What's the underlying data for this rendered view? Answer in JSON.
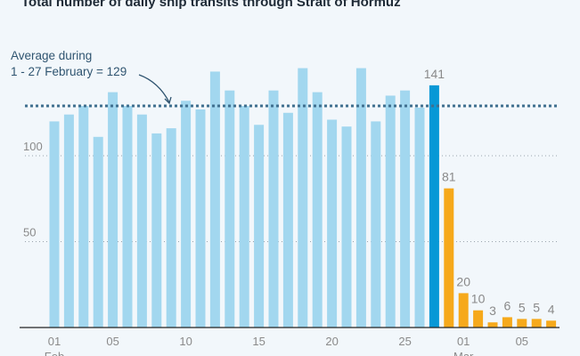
{
  "chart_data": {
    "type": "bar",
    "title": "Total number of daily ship transits through Strait of Hormuz",
    "xlabel": "",
    "ylabel": "",
    "ylim": [
      0,
      155
    ],
    "yticks": [
      50,
      100
    ],
    "grid": true,
    "categories": [
      "01 Feb",
      "02",
      "03",
      "04",
      "05",
      "06",
      "07",
      "08",
      "09",
      "10",
      "11",
      "12",
      "13",
      "14",
      "15",
      "16",
      "17",
      "18",
      "19",
      "20",
      "21",
      "22",
      "23",
      "24",
      "25",
      "26",
      "27",
      "28",
      "01 Mar",
      "02",
      "03",
      "04",
      "05",
      "06",
      "07"
    ],
    "values": [
      120,
      124,
      129,
      111,
      137,
      129,
      124,
      113,
      116,
      132,
      127,
      149,
      138,
      129,
      118,
      138,
      125,
      151,
      137,
      121,
      117,
      151,
      120,
      135,
      138,
      128,
      141,
      81,
      20,
      10,
      3,
      6,
      5,
      5,
      4
    ],
    "bar_types": [
      "pre",
      "pre",
      "pre",
      "pre",
      "pre",
      "pre",
      "pre",
      "pre",
      "pre",
      "pre",
      "pre",
      "pre",
      "pre",
      "pre",
      "pre",
      "pre",
      "pre",
      "pre",
      "pre",
      "pre",
      "pre",
      "pre",
      "pre",
      "pre",
      "pre",
      "pre",
      "last",
      "post",
      "post",
      "post",
      "post",
      "post",
      "post",
      "post",
      "post"
    ],
    "data_labels": {
      "26": "141",
      "27": "81",
      "28": "20",
      "29": "10",
      "30": "3",
      "31": "6",
      "32": "5",
      "33": "5",
      "34": "4"
    },
    "xtick_labels": [
      {
        "i": 0,
        "label": "01",
        "sub": "Feb"
      },
      {
        "i": 4,
        "label": "05"
      },
      {
        "i": 9,
        "label": "10"
      },
      {
        "i": 14,
        "label": "15"
      },
      {
        "i": 19,
        "label": "20"
      },
      {
        "i": 24,
        "label": "25"
      },
      {
        "i": 28,
        "label": "01",
        "sub": "Mar"
      },
      {
        "i": 32,
        "label": "05"
      }
    ],
    "average": {
      "value": 129,
      "label_line1": "Average during",
      "label_line2": "1 - 27 February = 129"
    },
    "colors": {
      "pre": "#a2d7ef",
      "last": "#0798d6",
      "post": "#f6a91b",
      "avg": "#3f6f8f",
      "text": "#8a8a8a"
    }
  }
}
